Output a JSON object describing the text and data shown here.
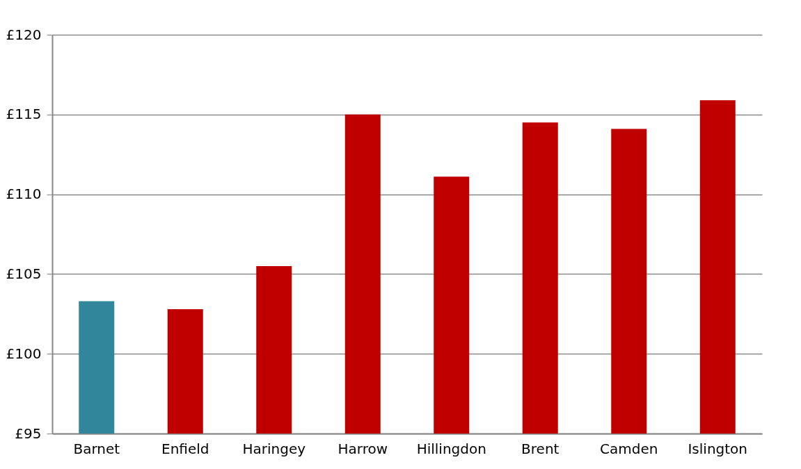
{
  "chart_data": {
    "type": "bar",
    "categories": [
      "Barnet",
      "Enfield",
      "Haringey",
      "Harrow",
      "Hillingdon",
      "Brent",
      "Camden",
      "Islington"
    ],
    "values": [
      103.3,
      102.8,
      105.5,
      115.0,
      111.1,
      114.5,
      114.1,
      115.9
    ],
    "colors": [
      "#31869b",
      "#c00000",
      "#c00000",
      "#c00000",
      "#c00000",
      "#c00000",
      "#c00000",
      "#c00000"
    ],
    "ylim": [
      95,
      120
    ],
    "yticks": [
      {
        "value": 95,
        "label": "£95"
      },
      {
        "value": 100,
        "label": "£100"
      },
      {
        "value": 105,
        "label": "£105"
      },
      {
        "value": 110,
        "label": "£110"
      },
      {
        "value": 115,
        "label": "£115"
      },
      {
        "value": 120,
        "label": "£120"
      }
    ],
    "grid": "y"
  }
}
